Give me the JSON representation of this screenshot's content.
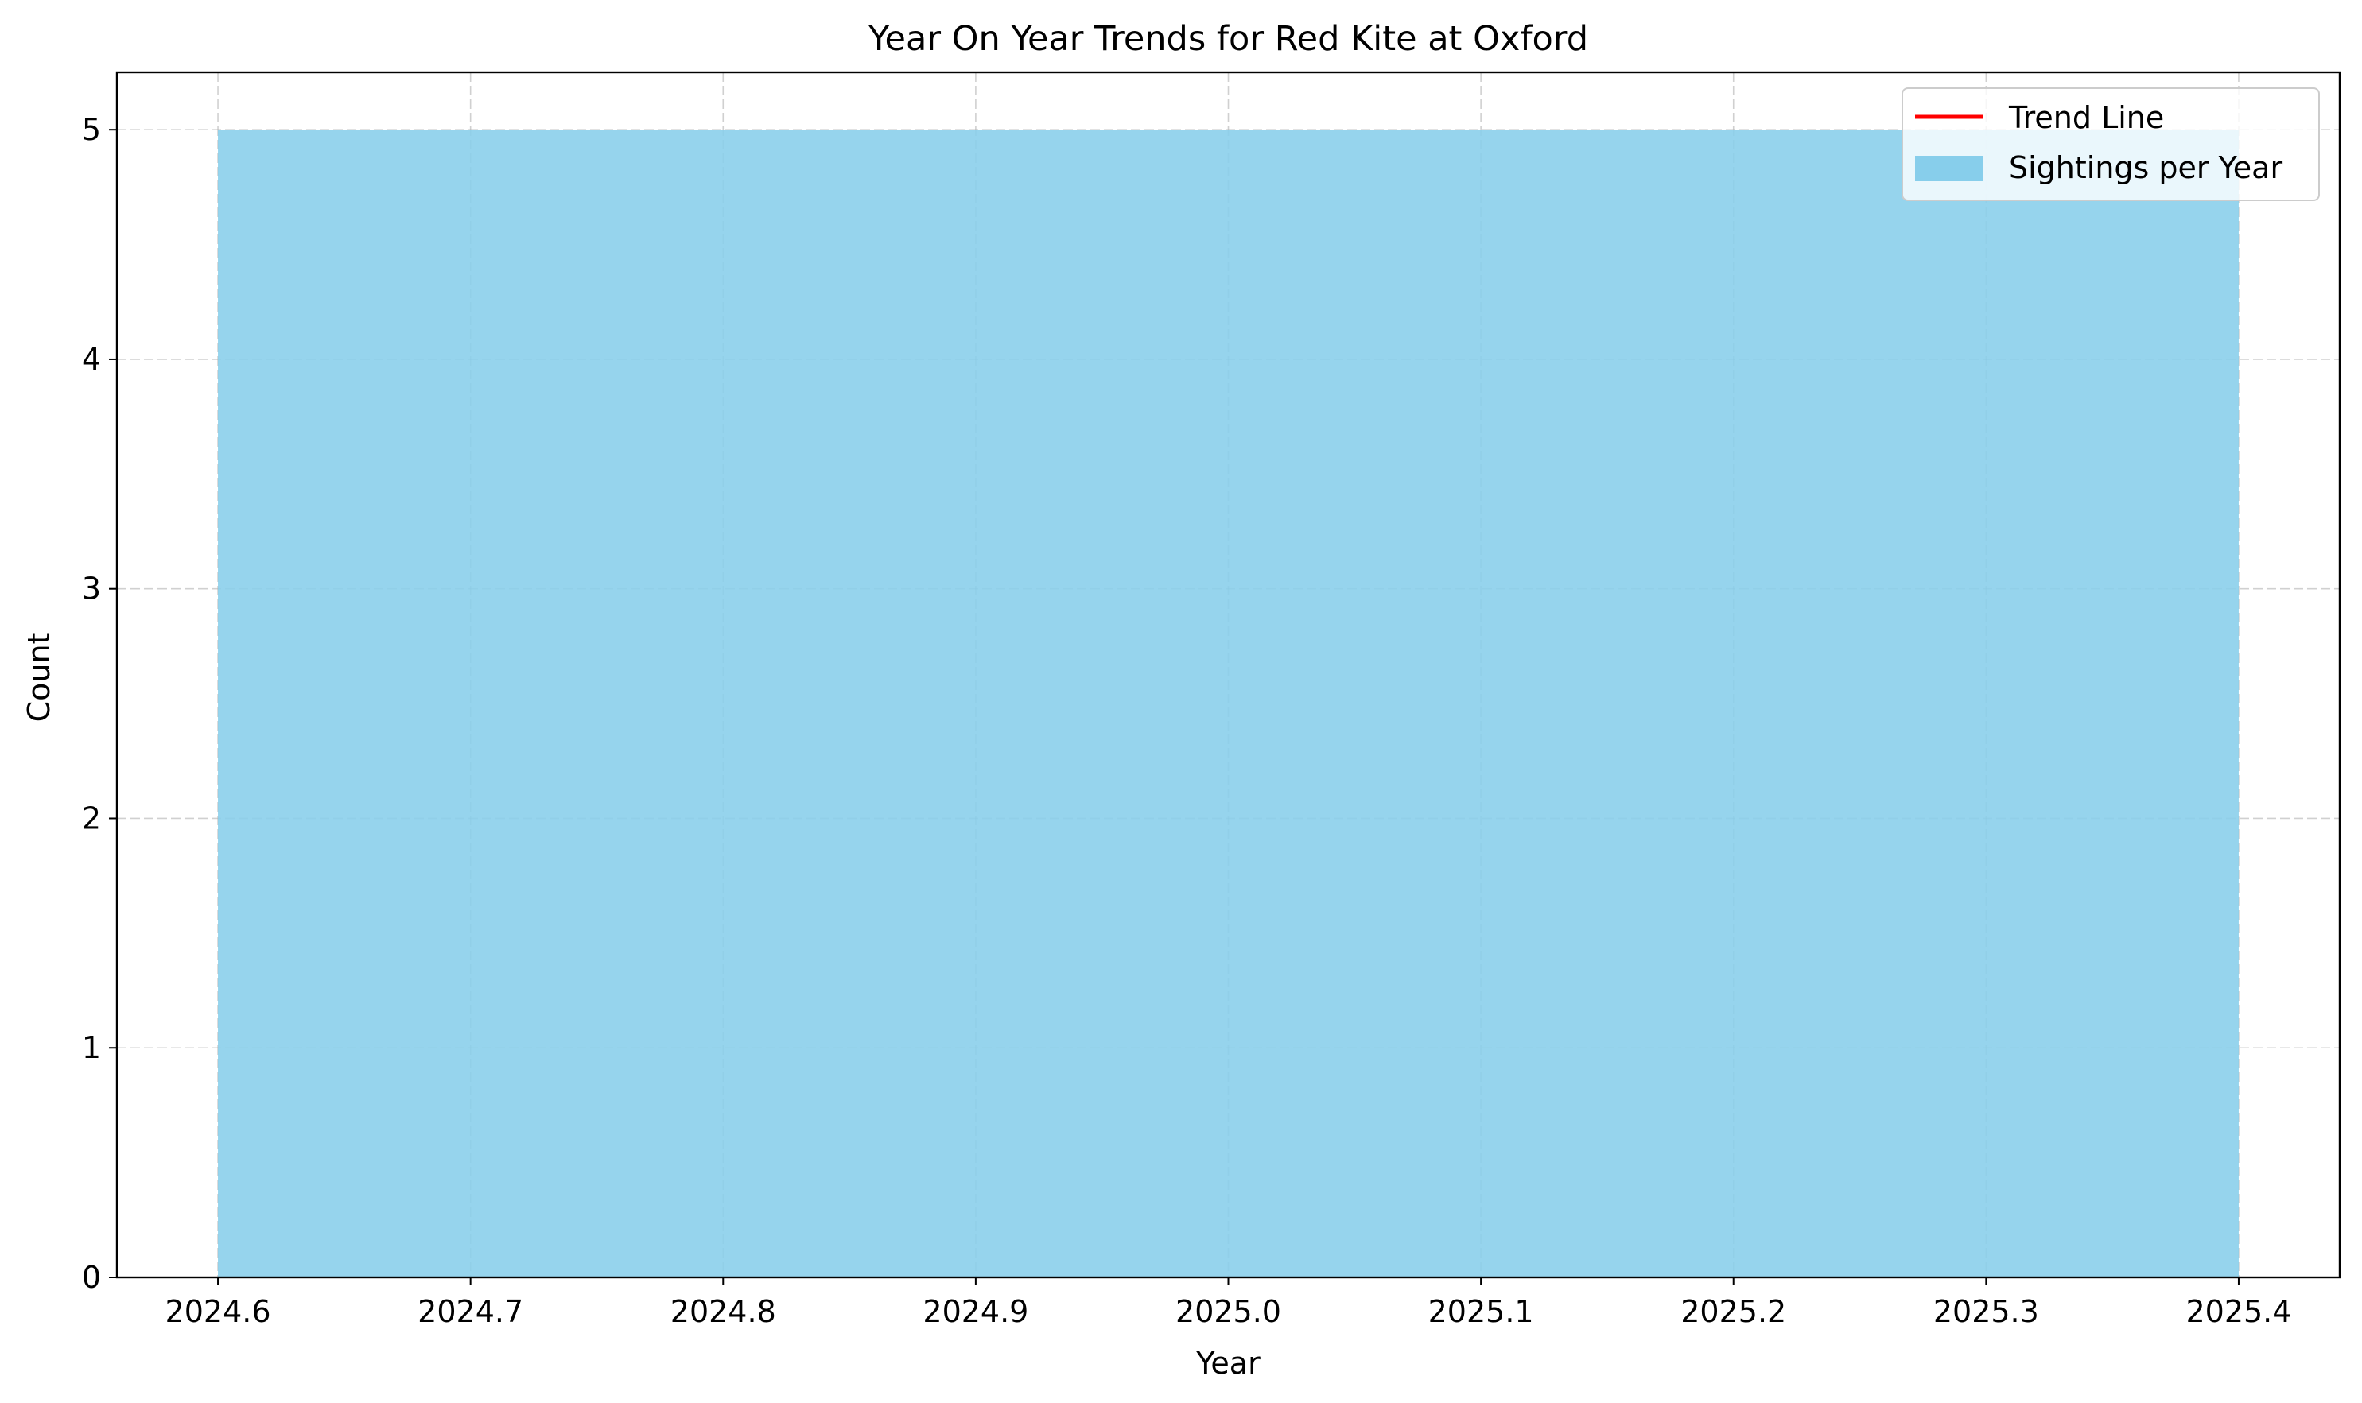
{
  "chart_data": {
    "type": "bar",
    "title": "Year On Year Trends for Red Kite at Oxford",
    "xlabel": "Year",
    "ylabel": "Count",
    "xlim": [
      2024.56,
      2025.44
    ],
    "ylim": [
      0,
      5.25
    ],
    "x_ticks": [
      "2024.6",
      "2024.7",
      "2024.8",
      "2024.9",
      "2025.0",
      "2025.1",
      "2025.2",
      "2025.3",
      "2025.4"
    ],
    "y_ticks": [
      "0",
      "1",
      "2",
      "3",
      "4",
      "5"
    ],
    "grid": true,
    "legend_placement": "top-right",
    "legend": [
      {
        "label": "Trend Line",
        "kind": "line",
        "color": "#ff0000"
      },
      {
        "label": "Sightings per Year",
        "kind": "patch",
        "color": "#87ceeb"
      }
    ],
    "series": [
      {
        "name": "Sightings per Year",
        "type": "bar",
        "color": "#87ceeb",
        "bars": [
          {
            "x_start": 2024.6,
            "x_end": 2025.4,
            "value": 5
          }
        ]
      },
      {
        "name": "Trend Line",
        "type": "line",
        "color": "#ff0000",
        "points": []
      }
    ]
  }
}
